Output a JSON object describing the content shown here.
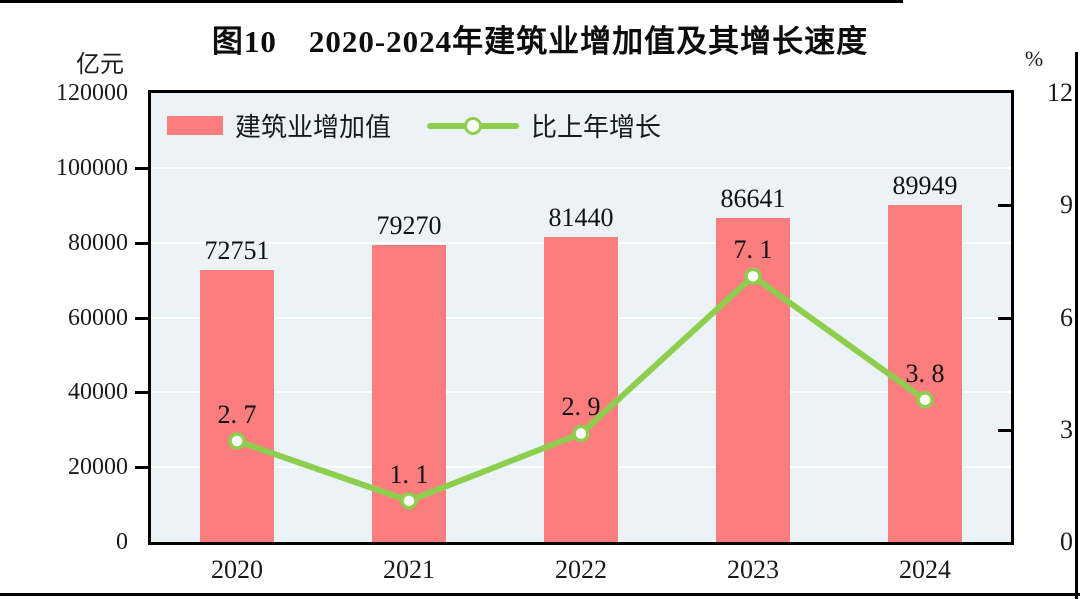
{
  "chart_data": {
    "type": "combo-bar-line",
    "title": "图10　2020-2024年建筑业增加值及其增长速度",
    "categories": [
      "2020",
      "2021",
      "2022",
      "2023",
      "2024"
    ],
    "series": [
      {
        "name": "建筑业增加值",
        "type": "bar",
        "axis": "left",
        "color": "#fc7d7d",
        "values": [
          72751,
          79270,
          81440,
          86641,
          89949
        ],
        "value_labels": [
          "72751",
          "79270",
          "81440",
          "86641",
          "89949"
        ]
      },
      {
        "name": "比上年增长",
        "type": "line",
        "axis": "right",
        "color": "#8dce4e",
        "marker_fill": "#ffffff",
        "values": [
          2.7,
          1.1,
          2.9,
          7.1,
          3.8
        ],
        "value_labels": [
          "2. 7",
          "1. 1",
          "2. 9",
          "7. 1",
          "3. 8"
        ]
      }
    ],
    "left_axis": {
      "label": "亿元",
      "min": 0,
      "max": 120000,
      "tick_step": 20000,
      "tick_labels": [
        "0",
        "20000",
        "40000",
        "60000",
        "80000",
        "100000",
        "120000"
      ]
    },
    "right_axis": {
      "label": "%",
      "min": 0,
      "max": 12,
      "tick_step": 3,
      "tick_labels": [
        "0",
        "3",
        "6",
        "9",
        "12"
      ]
    },
    "grid": true,
    "grid_color": "#ffffff",
    "plot_background": "#ecf3f7",
    "legend_position": "top-left-inside"
  }
}
